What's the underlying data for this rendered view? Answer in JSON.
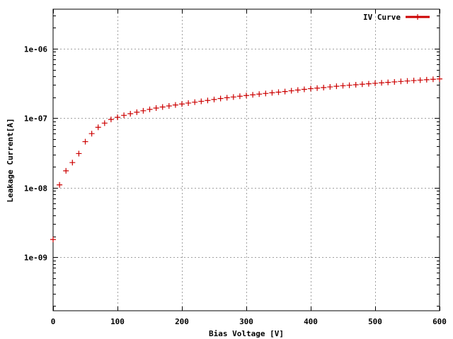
{
  "chart_data": {
    "type": "scatter",
    "xlabel": "Bias Voltage [V]",
    "ylabel": "Leakage Current[A]",
    "xlim": [
      0,
      600
    ],
    "ylim": [
      1.7e-10,
      3.7e-06
    ],
    "yscale": "log",
    "grid": true,
    "legend_position": "top-right",
    "x_ticks": [
      0,
      100,
      200,
      300,
      400,
      500,
      600
    ],
    "x_tick_labels": [
      "0",
      "100",
      "200",
      "300",
      "400",
      "500",
      "600"
    ],
    "y_ticks": [
      1e-09,
      1e-08,
      1e-07,
      1e-06
    ],
    "y_tick_labels": [
      "1e-09",
      "1e-08",
      "1e-07",
      "1e-06"
    ],
    "series": [
      {
        "name": "IV Curve",
        "color": "#cc0000",
        "marker": "plus",
        "x": [
          0,
          10,
          20,
          30,
          40,
          50,
          60,
          70,
          80,
          90,
          100,
          110,
          120,
          130,
          140,
          150,
          160,
          170,
          180,
          190,
          200,
          210,
          220,
          230,
          240,
          250,
          260,
          270,
          280,
          290,
          300,
          310,
          320,
          330,
          340,
          350,
          360,
          370,
          380,
          390,
          400,
          410,
          420,
          430,
          440,
          450,
          460,
          470,
          480,
          490,
          500,
          510,
          520,
          530,
          540,
          550,
          560,
          570,
          580,
          590,
          600
        ],
        "y": [
          1.8e-09,
          1.1e-08,
          1.75e-08,
          2.3e-08,
          3.1e-08,
          4.6e-08,
          6e-08,
          7.4e-08,
          8.5e-08,
          9.6e-08,
          1.03e-07,
          1.1e-07,
          1.16e-07,
          1.22e-07,
          1.28e-07,
          1.34e-07,
          1.4e-07,
          1.45e-07,
          1.5e-07,
          1.55e-07,
          1.6e-07,
          1.65e-07,
          1.7e-07,
          1.75e-07,
          1.8e-07,
          1.86e-07,
          1.92e-07,
          1.97e-07,
          2.02e-07,
          2.07e-07,
          2.12e-07,
          2.17e-07,
          2.22e-07,
          2.27e-07,
          2.32e-07,
          2.37e-07,
          2.42e-07,
          2.48e-07,
          2.54e-07,
          2.6e-07,
          2.66e-07,
          2.71e-07,
          2.76e-07,
          2.82e-07,
          2.88e-07,
          2.93e-07,
          2.98e-07,
          3.03e-07,
          3.08e-07,
          3.13e-07,
          3.18e-07,
          3.23e-07,
          3.28e-07,
          3.33e-07,
          3.38e-07,
          3.43e-07,
          3.48e-07,
          3.53e-07,
          3.58e-07,
          3.63e-07,
          3.67e-07
        ]
      }
    ]
  }
}
